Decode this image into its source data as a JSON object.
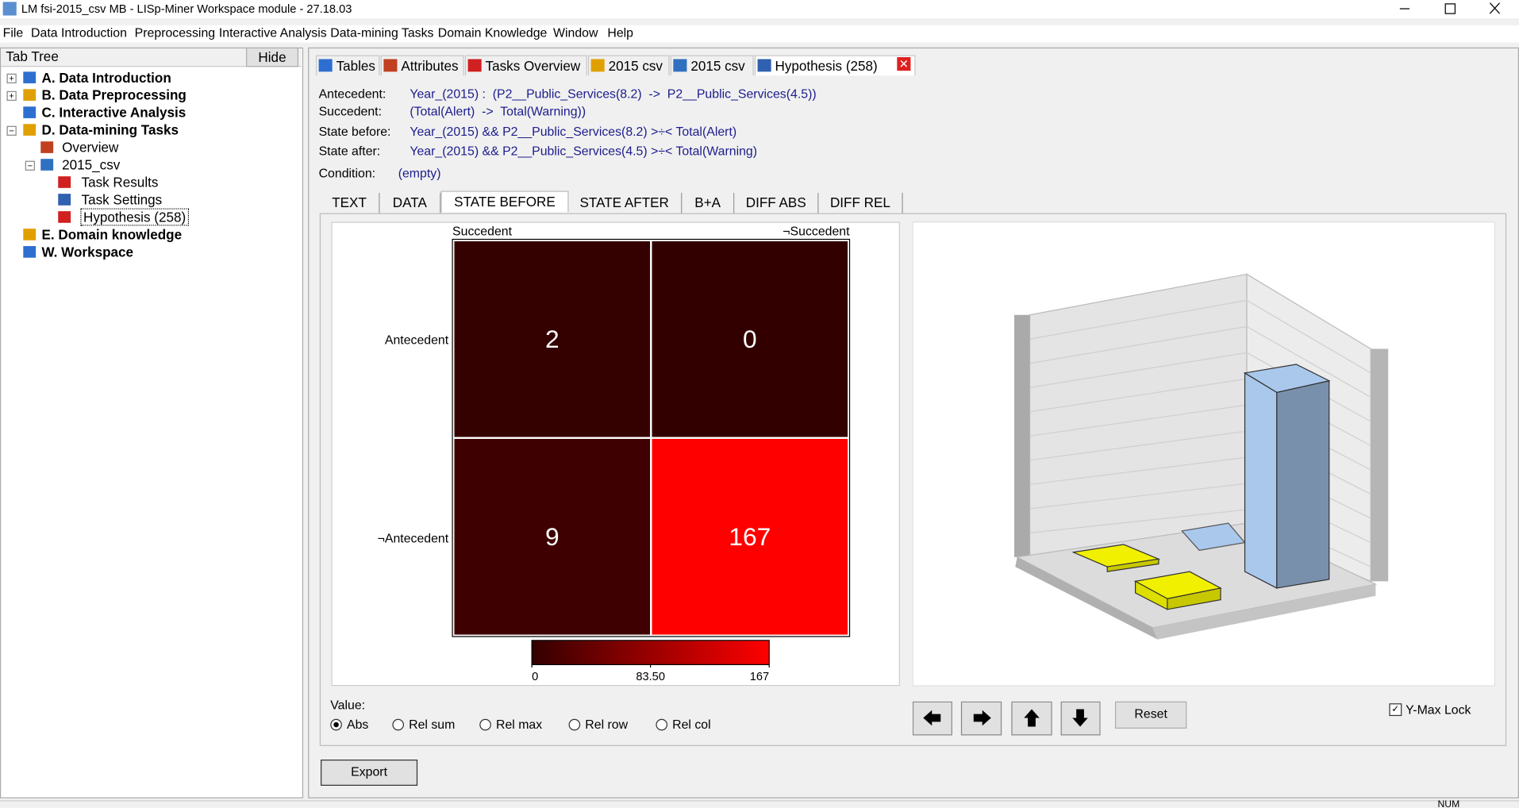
{
  "window": {
    "title": "LM fsi-2015_csv MB - LISp-Miner Workspace module - 27.18.03"
  },
  "menu": [
    "File",
    "Data Introduction",
    "Preprocessing",
    "Interactive Analysis",
    "Data-mining Tasks",
    "Domain Knowledge",
    "Window",
    "Help"
  ],
  "tab_tree": {
    "title": "Tab Tree",
    "hide_button": "Hide",
    "items": [
      {
        "label": "A. Data Introduction",
        "expanded": false
      },
      {
        "label": "B. Data Preprocessing",
        "expanded": false
      },
      {
        "label": "C. Interactive Analysis"
      },
      {
        "label": "D. Data-mining Tasks",
        "expanded": true,
        "children": [
          {
            "label": "Overview"
          },
          {
            "label": "2015_csv",
            "expanded": true,
            "children": [
              {
                "label": "Task Results"
              },
              {
                "label": "Task Settings"
              },
              {
                "label": "Hypothesis (258)",
                "selected": true
              }
            ]
          }
        ]
      },
      {
        "label": "E. Domain knowledge"
      },
      {
        "label": "W. Workspace"
      }
    ]
  },
  "tabs": {
    "items": [
      "Tables",
      "Attributes",
      "Tasks Overview",
      "2015  csv",
      "2015  csv",
      "Hypothesis (258)"
    ],
    "active": 5
  },
  "hypothesis": {
    "fields": [
      {
        "label": "Antecedent:",
        "value": "Year_(2015) :  (P2__Public_Services(8.2)  ->  P2__Public_Services(4.5))"
      },
      {
        "label": "Succedent:",
        "value": "(Total(Alert)  ->  Total(Warning))"
      },
      {
        "label": "State before:",
        "value": "Year_(2015) && P2__Public_Services(8.2) >÷< Total(Alert)"
      },
      {
        "label": "State after:",
        "value": "Year_(2015) && P2__Public_Services(4.5) >÷< Total(Warning)"
      }
    ],
    "condition": {
      "label": "Condition:",
      "value": "(empty)"
    }
  },
  "subtabs": {
    "items": [
      "TEXT",
      "DATA",
      "STATE BEFORE",
      "STATE AFTER",
      "B+A",
      "DIFF ABS",
      "DIFF REL"
    ],
    "active": 2
  },
  "table": {
    "columns": [
      "Succedent",
      "¬Succedent"
    ],
    "rows": [
      "Antecedent",
      "¬Antecedent"
    ],
    "cells": [
      [
        2,
        0
      ],
      [
        9,
        167
      ]
    ],
    "scale": {
      "min": 0,
      "max": 167,
      "ticks": [
        0,
        {
          "value": 83.5,
          "label": "83.50"
        },
        167
      ]
    }
  },
  "value_options": {
    "label": "Value:",
    "options": [
      "Abs",
      "Rel sum",
      "Rel max",
      "Rel row",
      "Rel col"
    ],
    "selected": 0
  },
  "buttons": {
    "reset": "Reset",
    "export": "Export"
  },
  "y_max_lock": {
    "label": "Y-Max Lock",
    "checked": true
  },
  "status": {
    "indicator": "NUM"
  }
}
